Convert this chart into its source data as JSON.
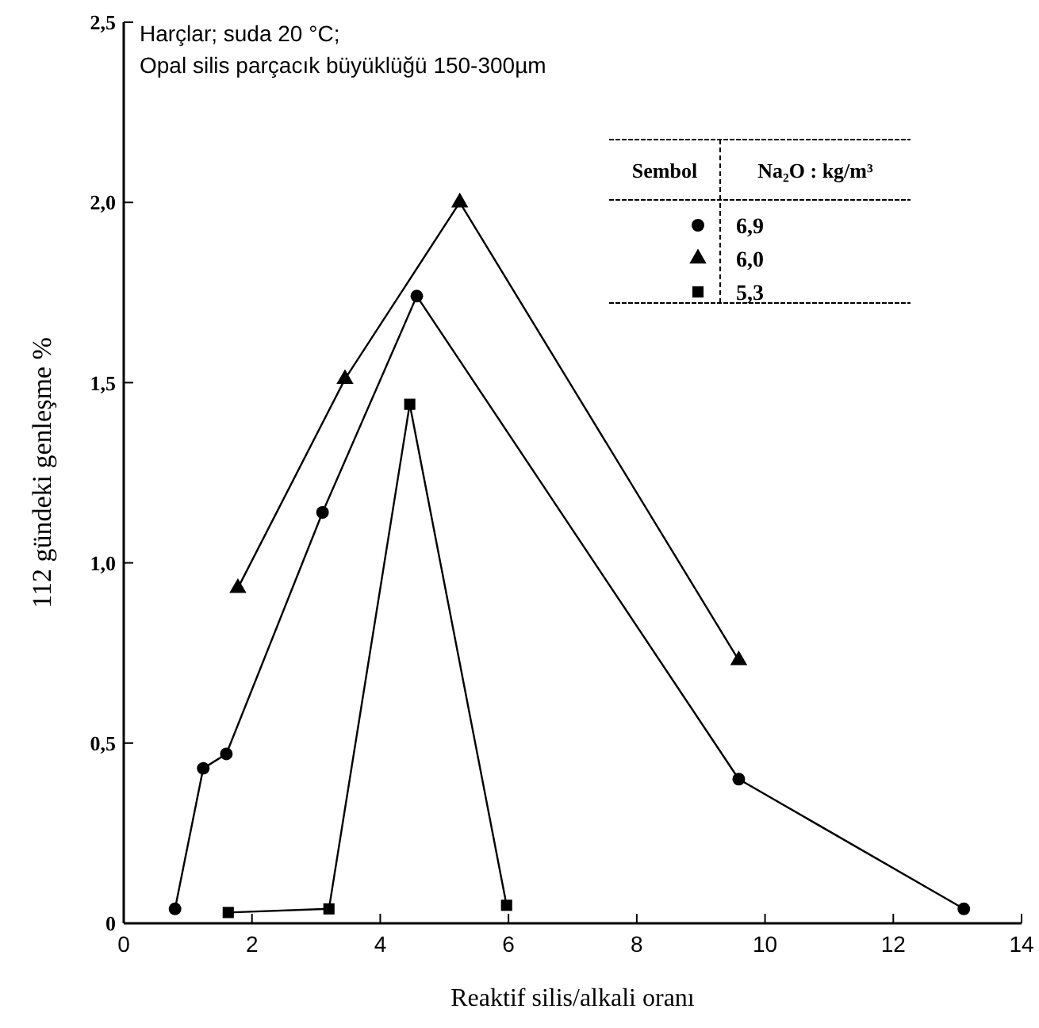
{
  "chart_data": {
    "type": "line",
    "xlabel": "Reaktif silis/alkali oranı",
    "ylabel": "112 gündeki genleşme %",
    "xlim": [
      0,
      14
    ],
    "xticks": [
      0,
      2,
      4,
      6,
      8,
      10,
      12,
      14
    ],
    "ylim": [
      0,
      2.5
    ],
    "yticks": [
      {
        "value": 0,
        "label": "0"
      },
      {
        "value": 0.5,
        "label": "0,5"
      },
      {
        "value": 1,
        "label": "1,0"
      },
      {
        "value": 1.5,
        "label": "1,5"
      },
      {
        "value": 2,
        "label": "2,0"
      },
      {
        "value": 2.5,
        "label": "2,5"
      }
    ],
    "grid": false,
    "legend": "top right",
    "legend_title": "Na₂O : kg/m³",
    "annotations": [
      "Harçlar; suda 20 °C;",
      "Opal silis parçacık büyüklüğü 150-300µm",
      "Sembol"
    ],
    "series": [
      {
        "name": "6,9",
        "color": "#000000",
        "marker": "circle",
        "x": [
          0.8,
          1.24,
          1.6,
          3.1,
          4.57,
          9.59,
          13.1
        ],
        "values": [
          0.04,
          0.43,
          0.47,
          1.14,
          1.74,
          0.4,
          0.04
        ]
      },
      {
        "name": "6,0",
        "color": "#000000",
        "marker": "triangle",
        "x": [
          1.78,
          3.45,
          5.24,
          9.59
        ],
        "values": [
          0.93,
          1.51,
          2.0,
          0.73
        ]
      },
      {
        "name": "5,3",
        "color": "#000000",
        "marker": "square",
        "x": [
          1.63,
          3.2,
          4.46,
          5.97
        ],
        "values": [
          0.03,
          0.04,
          1.44,
          0.05
        ]
      }
    ]
  }
}
